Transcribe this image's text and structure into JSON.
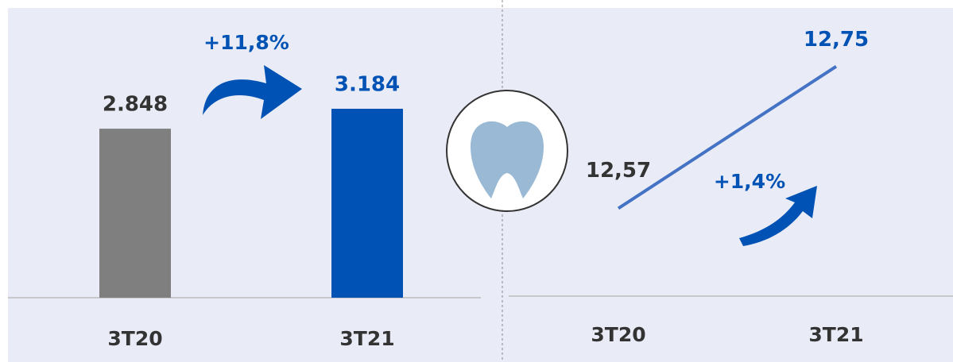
{
  "chart_data": [
    {
      "type": "bar",
      "categories": [
        "3T20",
        "3T21"
      ],
      "values": [
        2848,
        3184
      ],
      "value_labels": [
        "2.848",
        "3.184"
      ],
      "colors": [
        "#7f7f7f",
        "#0052b4"
      ],
      "ylim": [
        0,
        4000
      ],
      "annotations": [
        "+11,8%"
      ]
    },
    {
      "type": "line",
      "categories": [
        "3T20",
        "3T21"
      ],
      "values": [
        12.57,
        12.75
      ],
      "value_labels": [
        "12,57",
        "12,75"
      ],
      "color": "#4472c4",
      "ylim": [
        12.5,
        12.8
      ],
      "annotations": [
        "+1,4%"
      ]
    }
  ]
}
